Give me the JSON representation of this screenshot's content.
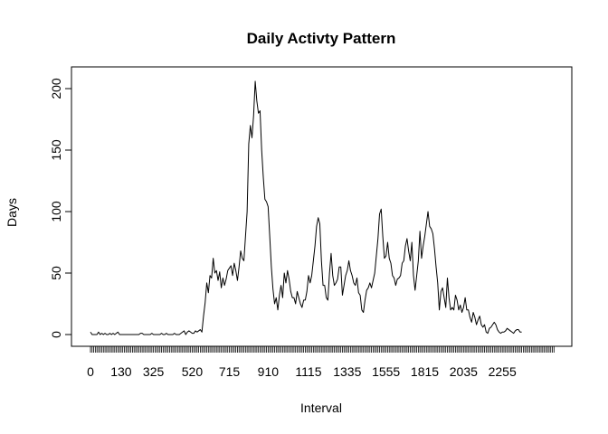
{
  "chart_data": {
    "type": "line",
    "title": "Daily Activty Pattern",
    "xlabel": "Interval",
    "ylabel": "Days",
    "ylim": [
      0,
      200
    ],
    "y_ticks": [
      0,
      50,
      100,
      150,
      200
    ],
    "x_tick_labels": [
      "0",
      "130",
      "325",
      "520",
      "715",
      "910",
      "1115",
      "1335",
      "1555",
      "1815",
      "2035",
      "2255"
    ],
    "x_tick_label_positions": [
      1,
      20,
      40,
      64,
      87,
      111,
      136,
      160,
      184,
      208,
      232,
      256
    ],
    "minor_tick_count": 288,
    "grid": false,
    "legend": "none",
    "line_color": "#000000",
    "series": [
      {
        "values": [
          2,
          0,
          0,
          0,
          0,
          2,
          0,
          1,
          0,
          1,
          0,
          0,
          1,
          0,
          1,
          0,
          1,
          2,
          0,
          0,
          0,
          0,
          0,
          0,
          0,
          0,
          0,
          0,
          0,
          0,
          0,
          1,
          1,
          0,
          0,
          0,
          0,
          0,
          1,
          0,
          0,
          0,
          0,
          0,
          1,
          0,
          0,
          1,
          0,
          0,
          0,
          0,
          1,
          0,
          0,
          0,
          1,
          2,
          3,
          0,
          2,
          3,
          2,
          1,
          1,
          3,
          2,
          3,
          4,
          2,
          15,
          26,
          42,
          34,
          48,
          46,
          62,
          50,
          52,
          44,
          51,
          38,
          46,
          40,
          45,
          52,
          54,
          56,
          48,
          58,
          52,
          44,
          55,
          68,
          62,
          60,
          80,
          100,
          155,
          170,
          160,
          178,
          206,
          190,
          180,
          182,
          150,
          128,
          110,
          108,
          104,
          80,
          55,
          37,
          25,
          30,
          20,
          32,
          40,
          30,
          50,
          42,
          52,
          45,
          35,
          30,
          30,
          25,
          35,
          30,
          25,
          22,
          28,
          28,
          35,
          48,
          42,
          48,
          60,
          72,
          88,
          95,
          90,
          60,
          40,
          40,
          30,
          28,
          50,
          66,
          48,
          40,
          42,
          45,
          55,
          55,
          32,
          40,
          48,
          52,
          60,
          52,
          48,
          42,
          40,
          46,
          34,
          32,
          20,
          18,
          28,
          36,
          38,
          42,
          38,
          44,
          50,
          64,
          78,
          98,
          102,
          80,
          62,
          64,
          75,
          62,
          58,
          48,
          46,
          40,
          45,
          46,
          48,
          58,
          60,
          72,
          78,
          68,
          60,
          75,
          48,
          36,
          48,
          60,
          84,
          62,
          72,
          80,
          90,
          100,
          88,
          86,
          82,
          70,
          55,
          42,
          20,
          35,
          38,
          30,
          22,
          46,
          30,
          20,
          22,
          20,
          32,
          28,
          20,
          24,
          18,
          22,
          30,
          20,
          20,
          14,
          10,
          18,
          14,
          8,
          12,
          15,
          8,
          6,
          8,
          2,
          1,
          5,
          6,
          8,
          10,
          8,
          4,
          2,
          1,
          2,
          2,
          3,
          5,
          4,
          3,
          2,
          1,
          3,
          4,
          4,
          2,
          2
        ]
      }
    ]
  }
}
